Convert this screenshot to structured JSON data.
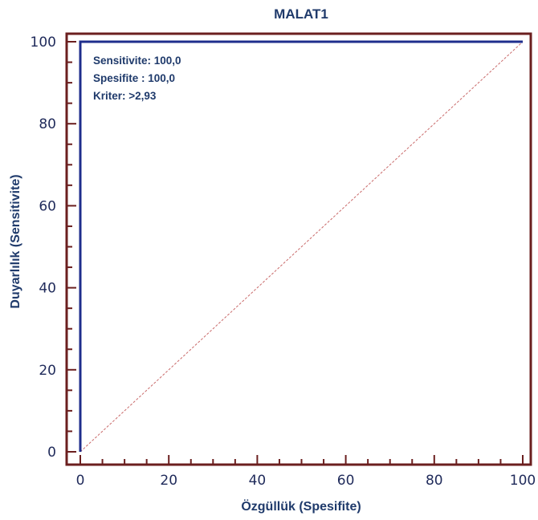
{
  "chart_data": {
    "type": "line",
    "title": "MALAT1",
    "xlabel": "Özgüllük (Spesifite)",
    "ylabel": "Duyarlılık (Sensitivite)",
    "xlim": [
      0,
      100
    ],
    "ylim": [
      0,
      100
    ],
    "x_ticks": [
      "0",
      "20",
      "40",
      "60",
      "80",
      "100"
    ],
    "y_ticks": [
      "0",
      "20",
      "40",
      "60",
      "80",
      "100"
    ],
    "series": [
      {
        "x": [
          0,
          0,
          100
        ],
        "y": [
          0,
          100,
          100
        ],
        "color": "#1f2e8c"
      }
    ],
    "reference_line": {
      "x": [
        0,
        100
      ],
      "y": [
        0,
        100
      ],
      "color": "#c96a6a"
    },
    "annotations": [
      "Sensitivite: 100,0",
      "Spesifite : 100,0",
      "Kriter: >2,93"
    ],
    "colors": {
      "frame": "#6b1f1f",
      "curve": "#1f2e8c",
      "reference": "#c96a6a",
      "text": "#1f3a6b"
    }
  }
}
